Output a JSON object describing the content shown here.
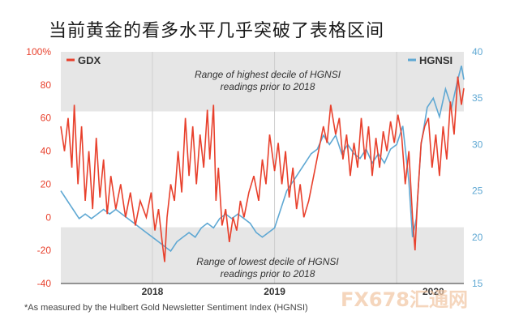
{
  "title": "当前黄金的看多水平几乎突破了表格区间",
  "footnote": "*As measured by the Hulbert Gold Newsletter Sentiment Index (HGNSI)",
  "watermark": "FX678汇通网",
  "chart_data": {
    "type": "line",
    "legend_left": "GDX",
    "legend_right": "HGNSI",
    "colors": {
      "gdx": "#e8402c",
      "hgnsi": "#5fa8d3",
      "band": "#e6e6e6",
      "grid": "#cfcfcf"
    },
    "y_left": {
      "ticks": [
        "100%",
        "80",
        "60",
        "40",
        "20",
        "0",
        "-20",
        "-40"
      ],
      "range": [
        -40,
        100
      ]
    },
    "y_right": {
      "ticks": [
        "40",
        "35",
        "30",
        "25",
        "20",
        "15"
      ],
      "range": [
        15,
        40
      ]
    },
    "x_ticks": [
      "2018",
      "2019",
      "2020"
    ],
    "x_range": [
      2017.25,
      2020.55
    ],
    "bands": [
      {
        "label": "Range of highest decile of HGNSI readings prior to 2018",
        "from": 64,
        "to": 100
      },
      {
        "label": "Range of lowest decile of HGNSI readings prior to 2018",
        "from": -40,
        "to": -6
      }
    ],
    "series": [
      {
        "name": "GDX",
        "axis": "left",
        "points": [
          [
            2017.25,
            55
          ],
          [
            2017.28,
            40
          ],
          [
            2017.31,
            60
          ],
          [
            2017.34,
            30
          ],
          [
            2017.36,
            68
          ],
          [
            2017.39,
            20
          ],
          [
            2017.42,
            55
          ],
          [
            2017.45,
            10
          ],
          [
            2017.48,
            40
          ],
          [
            2017.51,
            5
          ],
          [
            2017.54,
            48
          ],
          [
            2017.57,
            12
          ],
          [
            2017.6,
            35
          ],
          [
            2017.63,
            2
          ],
          [
            2017.66,
            25
          ],
          [
            2017.7,
            5
          ],
          [
            2017.74,
            20
          ],
          [
            2017.78,
            0
          ],
          [
            2017.82,
            15
          ],
          [
            2017.86,
            -5
          ],
          [
            2017.9,
            10
          ],
          [
            2017.95,
            0
          ],
          [
            2017.99,
            15
          ],
          [
            2018.02,
            -8
          ],
          [
            2018.05,
            5
          ],
          [
            2018.08,
            -15
          ],
          [
            2018.1,
            -27
          ],
          [
            2018.12,
            0
          ],
          [
            2018.15,
            20
          ],
          [
            2018.18,
            10
          ],
          [
            2018.21,
            40
          ],
          [
            2018.24,
            15
          ],
          [
            2018.27,
            60
          ],
          [
            2018.3,
            25
          ],
          [
            2018.33,
            55
          ],
          [
            2018.36,
            20
          ],
          [
            2018.39,
            50
          ],
          [
            2018.42,
            30
          ],
          [
            2018.45,
            65
          ],
          [
            2018.47,
            35
          ],
          [
            2018.5,
            68
          ],
          [
            2018.52,
            10
          ],
          [
            2018.54,
            30
          ],
          [
            2018.57,
            -5
          ],
          [
            2018.6,
            5
          ],
          [
            2018.63,
            -15
          ],
          [
            2018.66,
            0
          ],
          [
            2018.69,
            -8
          ],
          [
            2018.72,
            10
          ],
          [
            2018.75,
            0
          ],
          [
            2018.79,
            15
          ],
          [
            2018.83,
            25
          ],
          [
            2018.87,
            10
          ],
          [
            2018.9,
            35
          ],
          [
            2018.93,
            20
          ],
          [
            2018.96,
            50
          ],
          [
            2019.0,
            28
          ],
          [
            2019.03,
            45
          ],
          [
            2019.06,
            20
          ],
          [
            2019.09,
            40
          ],
          [
            2019.12,
            12
          ],
          [
            2019.15,
            30
          ],
          [
            2019.18,
            5
          ],
          [
            2019.21,
            20
          ],
          [
            2019.24,
            0
          ],
          [
            2019.28,
            10
          ],
          [
            2019.32,
            25
          ],
          [
            2019.36,
            40
          ],
          [
            2019.4,
            55
          ],
          [
            2019.43,
            45
          ],
          [
            2019.46,
            68
          ],
          [
            2019.5,
            50
          ],
          [
            2019.53,
            60
          ],
          [
            2019.56,
            35
          ],
          [
            2019.59,
            50
          ],
          [
            2019.62,
            25
          ],
          [
            2019.65,
            45
          ],
          [
            2019.68,
            30
          ],
          [
            2019.71,
            60
          ],
          [
            2019.74,
            35
          ],
          [
            2019.77,
            55
          ],
          [
            2019.8,
            25
          ],
          [
            2019.83,
            48
          ],
          [
            2019.86,
            30
          ],
          [
            2019.89,
            52
          ],
          [
            2019.92,
            40
          ],
          [
            2019.95,
            58
          ],
          [
            2019.98,
            45
          ],
          [
            2020.01,
            62
          ],
          [
            2020.04,
            50
          ],
          [
            2020.07,
            20
          ],
          [
            2020.1,
            40
          ],
          [
            2020.13,
            0
          ],
          [
            2020.15,
            -20
          ],
          [
            2020.17,
            10
          ],
          [
            2020.2,
            45
          ],
          [
            2020.23,
            55
          ],
          [
            2020.26,
            60
          ],
          [
            2020.29,
            30
          ],
          [
            2020.32,
            50
          ],
          [
            2020.35,
            25
          ],
          [
            2020.38,
            55
          ],
          [
            2020.41,
            35
          ],
          [
            2020.44,
            70
          ],
          [
            2020.47,
            50
          ],
          [
            2020.5,
            85
          ],
          [
            2020.53,
            68
          ],
          [
            2020.55,
            78
          ]
        ]
      },
      {
        "name": "HGNSI",
        "axis": "right",
        "points": [
          [
            2017.25,
            25
          ],
          [
            2017.3,
            24
          ],
          [
            2017.35,
            23
          ],
          [
            2017.4,
            22
          ],
          [
            2017.45,
            22.5
          ],
          [
            2017.5,
            22
          ],
          [
            2017.55,
            22.5
          ],
          [
            2017.6,
            23
          ],
          [
            2017.65,
            22.5
          ],
          [
            2017.7,
            23
          ],
          [
            2017.75,
            22.5
          ],
          [
            2017.8,
            22
          ],
          [
            2017.85,
            21.5
          ],
          [
            2017.9,
            21
          ],
          [
            2017.95,
            20.5
          ],
          [
            2018.0,
            20
          ],
          [
            2018.05,
            19.5
          ],
          [
            2018.1,
            19
          ],
          [
            2018.15,
            18.5
          ],
          [
            2018.2,
            19.5
          ],
          [
            2018.25,
            20
          ],
          [
            2018.3,
            20.5
          ],
          [
            2018.35,
            20
          ],
          [
            2018.4,
            21
          ],
          [
            2018.45,
            21.5
          ],
          [
            2018.5,
            21
          ],
          [
            2018.55,
            22
          ],
          [
            2018.6,
            22.5
          ],
          [
            2018.65,
            22
          ],
          [
            2018.7,
            22.5
          ],
          [
            2018.75,
            22
          ],
          [
            2018.8,
            21.5
          ],
          [
            2018.85,
            20.5
          ],
          [
            2018.9,
            20
          ],
          [
            2018.95,
            20.5
          ],
          [
            2019.0,
            21
          ],
          [
            2019.05,
            23
          ],
          [
            2019.1,
            25
          ],
          [
            2019.15,
            26
          ],
          [
            2019.2,
            27
          ],
          [
            2019.25,
            28
          ],
          [
            2019.3,
            29
          ],
          [
            2019.35,
            29.5
          ],
          [
            2019.4,
            31
          ],
          [
            2019.45,
            30
          ],
          [
            2019.5,
            31
          ],
          [
            2019.55,
            29
          ],
          [
            2019.6,
            30
          ],
          [
            2019.65,
            29
          ],
          [
            2019.7,
            28.5
          ],
          [
            2019.75,
            29.5
          ],
          [
            2019.8,
            28
          ],
          [
            2019.85,
            29
          ],
          [
            2019.9,
            28
          ],
          [
            2019.95,
            29.5
          ],
          [
            2020.0,
            30
          ],
          [
            2020.05,
            32
          ],
          [
            2020.1,
            26
          ],
          [
            2020.13,
            20
          ],
          [
            2020.16,
            22
          ],
          [
            2020.2,
            30
          ],
          [
            2020.25,
            34
          ],
          [
            2020.3,
            35
          ],
          [
            2020.35,
            33
          ],
          [
            2020.4,
            36
          ],
          [
            2020.45,
            34
          ],
          [
            2020.5,
            37
          ],
          [
            2020.53,
            38.5
          ],
          [
            2020.55,
            37
          ]
        ]
      }
    ]
  }
}
